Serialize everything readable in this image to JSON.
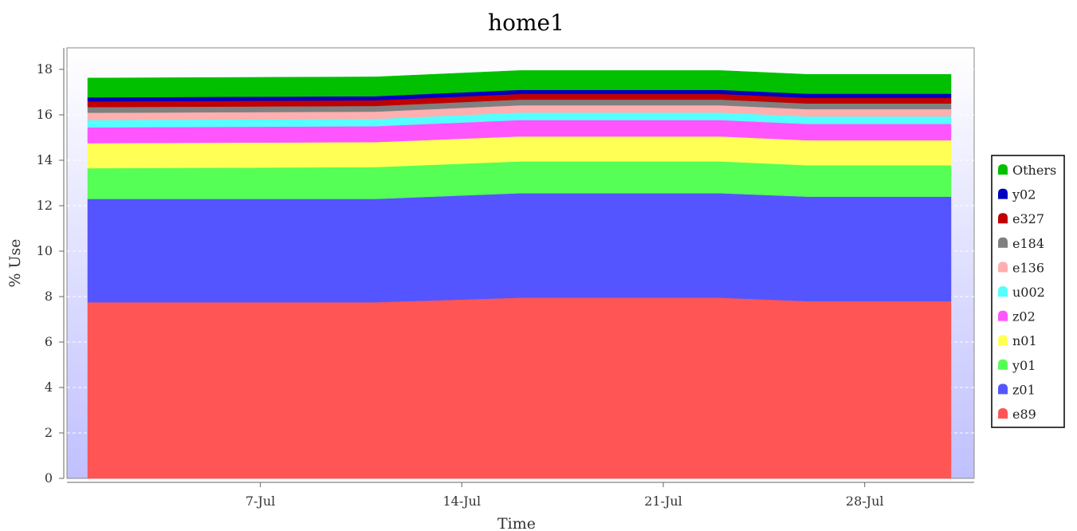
{
  "chart_data": {
    "type": "area",
    "stacked": true,
    "title": "home1",
    "xlabel": "Time",
    "ylabel": "% Use",
    "ylim": [
      0,
      19
    ],
    "yticks": [
      0,
      2,
      4,
      6,
      8,
      10,
      12,
      14,
      16,
      18
    ],
    "x_tick_labels": [
      "7-Jul",
      "14-Jul",
      "21-Jul",
      "28-Jul"
    ],
    "x": [
      "Jul 1",
      "Jul 11",
      "Jul 16",
      "Jul 23",
      "Jul 26",
      "Jul 31"
    ],
    "grid": true,
    "legend_position": "right",
    "series": [
      {
        "name": "e89",
        "color": "#ff5555",
        "values": [
          7.75,
          7.75,
          7.95,
          7.95,
          7.8,
          7.8
        ]
      },
      {
        "name": "z01",
        "color": "#5555ff",
        "values": [
          4.55,
          4.55,
          4.6,
          4.6,
          4.6,
          4.6
        ]
      },
      {
        "name": "y01",
        "color": "#55ff55",
        "values": [
          1.35,
          1.4,
          1.4,
          1.4,
          1.38,
          1.38
        ]
      },
      {
        "name": "n01",
        "color": "#ffff55",
        "values": [
          1.1,
          1.1,
          1.1,
          1.1,
          1.1,
          1.1
        ]
      },
      {
        "name": "z02",
        "color": "#ff55ff",
        "values": [
          0.7,
          0.7,
          0.72,
          0.72,
          0.72,
          0.72
        ]
      },
      {
        "name": "u002",
        "color": "#55ffff",
        "values": [
          0.32,
          0.32,
          0.33,
          0.33,
          0.33,
          0.33
        ]
      },
      {
        "name": "e136",
        "color": "#ffafaf",
        "values": [
          0.32,
          0.32,
          0.32,
          0.32,
          0.32,
          0.32
        ]
      },
      {
        "name": "e184",
        "color": "#808080",
        "values": [
          0.25,
          0.25,
          0.25,
          0.25,
          0.25,
          0.25
        ]
      },
      {
        "name": "e327",
        "color": "#c00000",
        "values": [
          0.25,
          0.25,
          0.25,
          0.25,
          0.25,
          0.25
        ]
      },
      {
        "name": "y02",
        "color": "#0000c0",
        "values": [
          0.18,
          0.18,
          0.18,
          0.18,
          0.18,
          0.18
        ]
      },
      {
        "name": "Others",
        "color": "#00c000",
        "values": [
          0.85,
          0.85,
          0.85,
          0.85,
          0.85,
          0.85
        ]
      }
    ],
    "legend_order": [
      "Others",
      "y02",
      "e327",
      "e184",
      "e136",
      "u002",
      "z02",
      "n01",
      "y01",
      "z01",
      "e89"
    ]
  }
}
